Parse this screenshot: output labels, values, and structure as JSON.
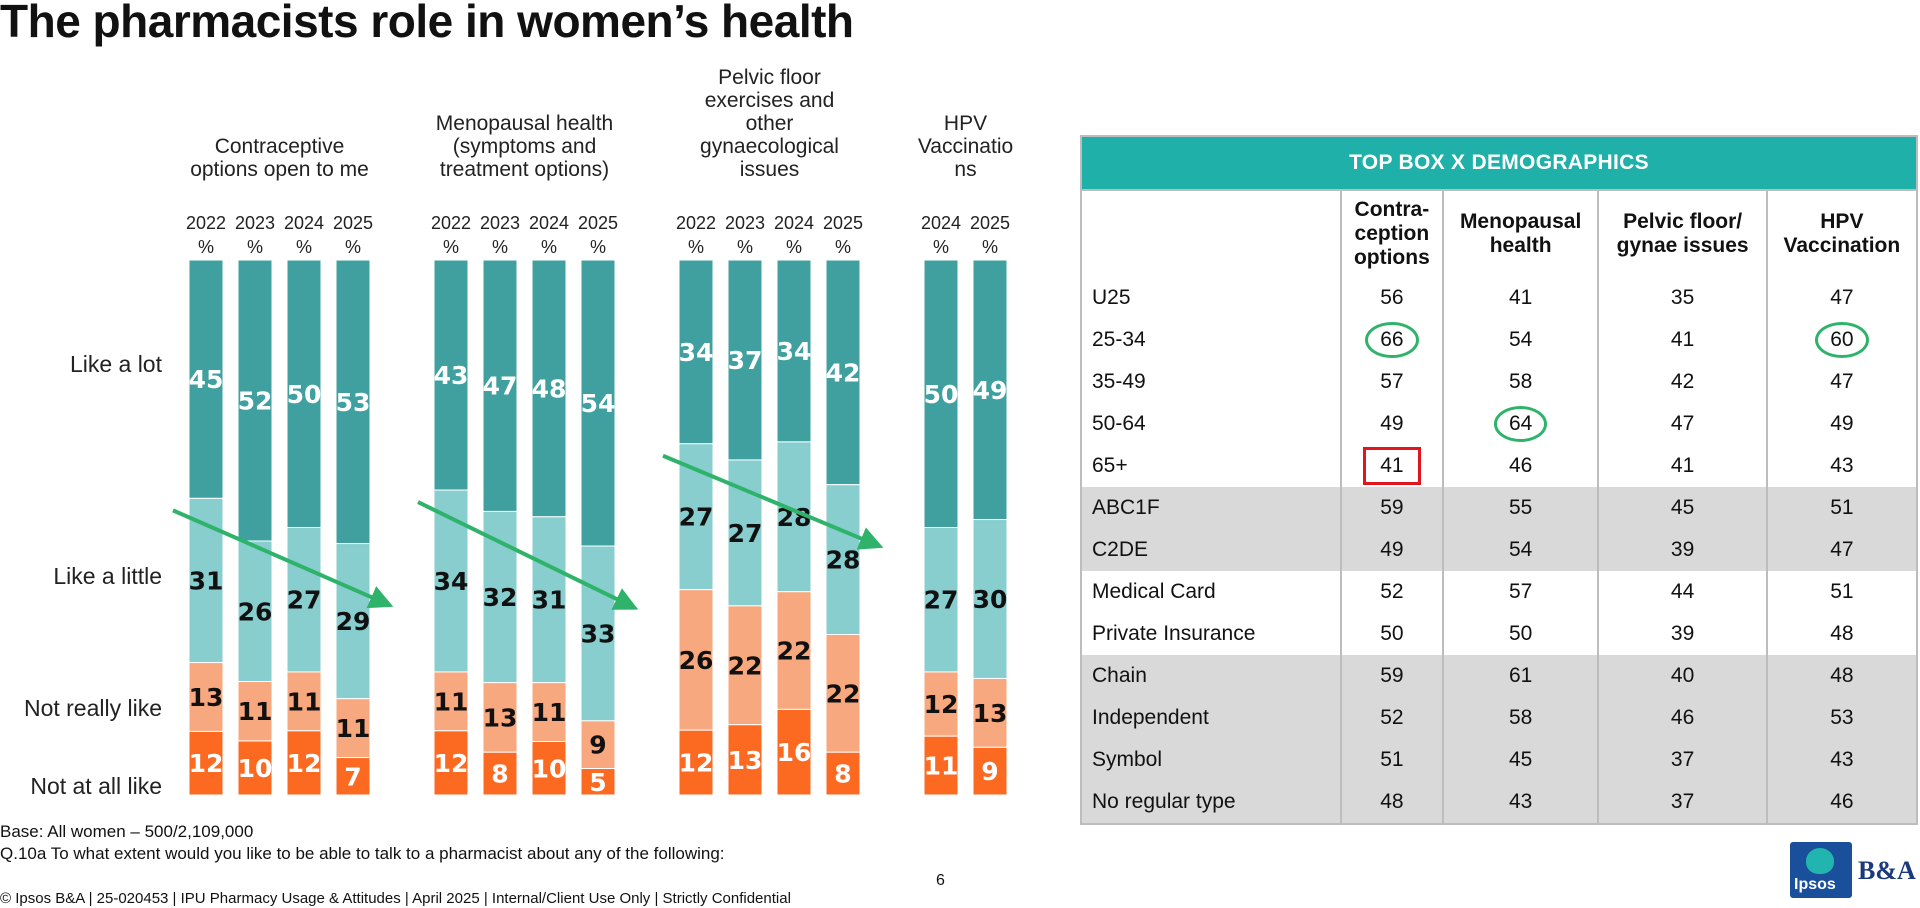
{
  "title": "The pharmacists role in women’s health",
  "colors": {
    "like_a_lot": "#40a0a0",
    "like_a_little": "#88cece",
    "not_really_like": "#f8a87e",
    "not_at_all_like": "#fc6a22",
    "trend_arrow": "#2fb36b",
    "table_header": "#1fb0aa",
    "circle_mark": "#2fb36b",
    "box_mark": "#e0161c"
  },
  "chart_data": {
    "type": "bar",
    "stacked": true,
    "normalized": true,
    "row_labels": [
      "Like a lot",
      "Like a little",
      "Not really like",
      "Not at all like"
    ],
    "groups": [
      {
        "label": "Contraceptive options open to me",
        "label_lines": [
          "Contraceptive",
          "options open to me"
        ],
        "years": [
          "2022",
          "2023",
          "2024",
          "2025"
        ],
        "like_a_lot": [
          45,
          52,
          50,
          53
        ],
        "like_a_little": [
          31,
          26,
          27,
          29
        ],
        "not_really_like": [
          13,
          11,
          11,
          11
        ],
        "not_at_all_like": [
          12,
          10,
          12,
          7
        ],
        "trend_arrow": true
      },
      {
        "label": "Menopausal health (symptoms and treatment options)",
        "label_lines": [
          "Menopausal health",
          "(symptoms and",
          "treatment options)"
        ],
        "years": [
          "2022",
          "2023",
          "2024",
          "2025"
        ],
        "like_a_lot": [
          43,
          47,
          48,
          54
        ],
        "like_a_little": [
          34,
          32,
          31,
          33
        ],
        "not_really_like": [
          11,
          13,
          11,
          9
        ],
        "not_at_all_like": [
          12,
          8,
          10,
          5
        ],
        "trend_arrow": true
      },
      {
        "label": "Pelvic floor exercises and other gynaecological issues",
        "label_lines": [
          "Pelvic floor",
          "exercises and",
          "other",
          "gynaecological",
          "issues"
        ],
        "years": [
          "2022",
          "2023",
          "2024",
          "2025"
        ],
        "like_a_lot": [
          34,
          37,
          34,
          42
        ],
        "like_a_little": [
          27,
          27,
          28,
          28
        ],
        "not_really_like": [
          26,
          22,
          22,
          22
        ],
        "not_at_all_like": [
          12,
          13,
          16,
          8
        ],
        "trend_arrow": true
      },
      {
        "label": "HPV Vaccinations",
        "label_lines": [
          "HPV",
          "Vaccinatio",
          "ns"
        ],
        "years": [
          "2024",
          "2025"
        ],
        "like_a_lot": [
          50,
          49
        ],
        "like_a_little": [
          27,
          30
        ],
        "not_really_like": [
          12,
          13
        ],
        "not_at_all_like": [
          11,
          9
        ],
        "trend_arrow": false
      }
    ],
    "year_unit": "%"
  },
  "table": {
    "title": "TOP BOX X DEMOGRAPHICS",
    "columns": [
      {
        "lines": [
          "Contra-",
          "ception",
          "options"
        ]
      },
      {
        "lines": [
          "Menopausal",
          "health"
        ]
      },
      {
        "lines": [
          "Pelvic floor/",
          "gynae issues"
        ]
      },
      {
        "lines": [
          "HPV",
          "Vaccination"
        ]
      }
    ],
    "rows": [
      {
        "label": "U25",
        "values": [
          56,
          41,
          35,
          47
        ],
        "shade": false
      },
      {
        "label": "25-34",
        "values": [
          66,
          54,
          41,
          60
        ],
        "shade": false,
        "marks": [
          "circle",
          "",
          "",
          "circle"
        ]
      },
      {
        "label": "35-49",
        "values": [
          57,
          58,
          42,
          47
        ],
        "shade": false
      },
      {
        "label": "50-64",
        "values": [
          49,
          64,
          47,
          49
        ],
        "shade": false,
        "marks": [
          "",
          "circle",
          "",
          ""
        ]
      },
      {
        "label": "65+",
        "values": [
          41,
          46,
          41,
          43
        ],
        "shade": false,
        "marks": [
          "box",
          "",
          "",
          ""
        ]
      },
      {
        "label": "ABC1F",
        "values": [
          59,
          55,
          45,
          51
        ],
        "shade": true
      },
      {
        "label": "C2DE",
        "values": [
          49,
          54,
          39,
          47
        ],
        "shade": true
      },
      {
        "label": "Medical Card",
        "values": [
          52,
          57,
          44,
          51
        ],
        "shade": false
      },
      {
        "label": "Private Insurance",
        "values": [
          50,
          50,
          39,
          48
        ],
        "shade": false
      },
      {
        "label": "Chain",
        "values": [
          59,
          61,
          40,
          48
        ],
        "shade": true
      },
      {
        "label": "Independent",
        "values": [
          52,
          58,
          46,
          53
        ],
        "shade": true
      },
      {
        "label": "Symbol",
        "values": [
          51,
          45,
          37,
          43
        ],
        "shade": true
      },
      {
        "label": "No regular type",
        "values": [
          48,
          43,
          37,
          46
        ],
        "shade": true
      }
    ]
  },
  "base_note": "Base: All women – 500/2,109,000",
  "question_note": "Q.10a To what extent would you like to be able to talk to a pharmacist about any of the following:",
  "footer": "© Ipsos B&A | 25-020453 | IPU Pharmacy Usage & Attitudes | April 2025 | Internal/Client Use Only | Strictly Confidential",
  "page_number": "6",
  "logo": {
    "ipsos": "Ipsos",
    "ba": "B&A"
  }
}
